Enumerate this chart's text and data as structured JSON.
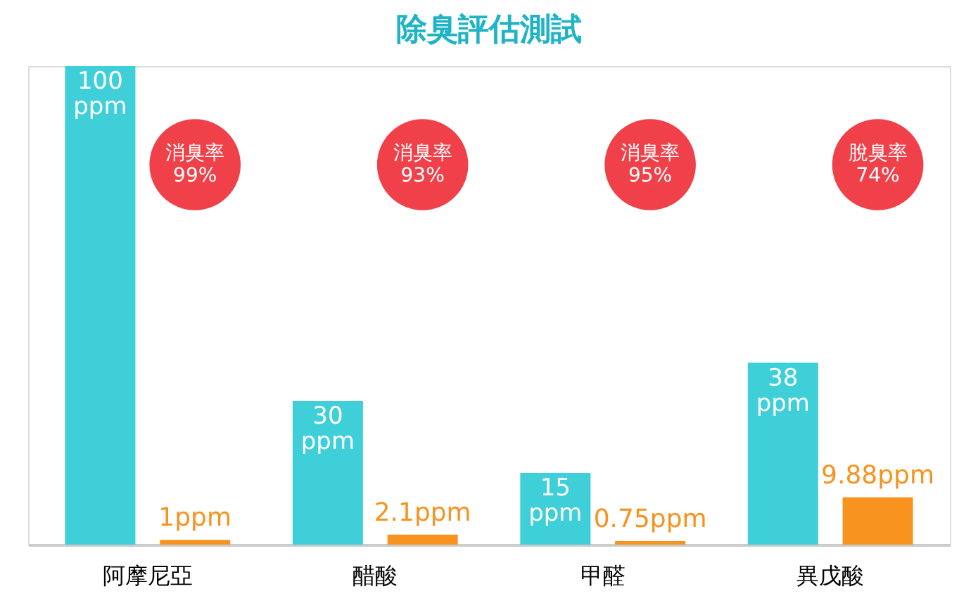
{
  "chart_data": {
    "type": "bar",
    "title": "除臭評估測試",
    "categories": [
      "阿摩尼亞",
      "醋酸",
      "甲醛",
      "異戊酸"
    ],
    "series": [
      {
        "color": "#3ecfd9",
        "values": [
          100,
          30,
          15,
          38
        ],
        "value_labels": [
          "100\nppm",
          "30\nppm",
          "15\nppm",
          "38\nppm"
        ]
      },
      {
        "color": "#f7931e",
        "values": [
          1,
          2.1,
          0.75,
          9.88
        ],
        "value_labels": [
          "1ppm",
          "2.1ppm",
          "0.75ppm",
          "9.88ppm"
        ]
      }
    ],
    "annotations": [
      "消臭率\n99%",
      "消臭率\n93%",
      "消臭率\n95%",
      "脫臭率\n74%"
    ],
    "grid": false
  }
}
